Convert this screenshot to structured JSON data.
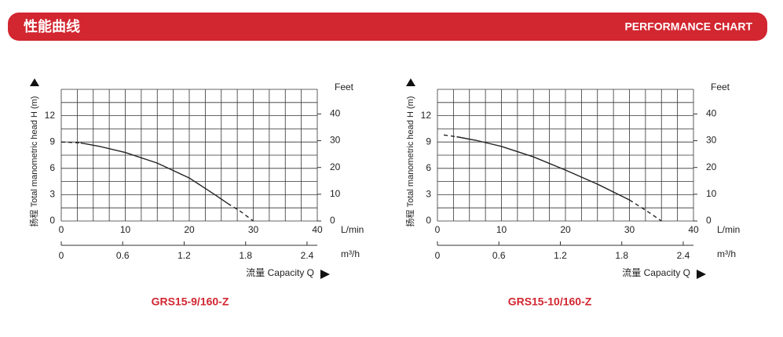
{
  "header": {
    "title_cn": "性能曲线",
    "title_en": "PERFORMANCE CHART"
  },
  "chart_data": [
    {
      "type": "line",
      "title": "GRS15-9/160-Z",
      "ylabel": "扬程 Total manometric head H (m)",
      "y2label": "Feet",
      "xlabel": "L/min",
      "x2label": "m³/h",
      "caption": "流量 Capacity Q",
      "xlim": [
        0,
        40
      ],
      "xticks": [
        0,
        10,
        20,
        30,
        40
      ],
      "x2lim": [
        0,
        2.5
      ],
      "x2ticks": [
        0,
        0.6,
        1.2,
        1.8,
        2.4
      ],
      "ylim": [
        0,
        15
      ],
      "yticks": [
        0,
        3,
        6,
        9,
        12
      ],
      "y2lim": [
        0,
        49.2
      ],
      "y2ticks": [
        0,
        10,
        20,
        30,
        40
      ],
      "xgrid": [
        0,
        2.5,
        5,
        7.5,
        10,
        12.5,
        15,
        17.5,
        20,
        22.5,
        25,
        27.5,
        30,
        32.5,
        35,
        37.5,
        40
      ],
      "ygrid": [
        0,
        1.5,
        3,
        4.5,
        6,
        7.5,
        9,
        10.5,
        12,
        13.5,
        15
      ],
      "color": "#222222",
      "series": [
        {
          "style": "dashed",
          "x": [
            0,
            3
          ],
          "values": [
            9.0,
            8.9
          ]
        },
        {
          "style": "solid",
          "x": [
            3,
            6,
            10,
            15,
            20,
            24,
            26
          ],
          "values": [
            8.9,
            8.5,
            7.8,
            6.6,
            4.9,
            3.0,
            2.0
          ]
        },
        {
          "style": "dashed",
          "x": [
            26,
            28,
            30
          ],
          "values": [
            2.0,
            1.1,
            0
          ]
        }
      ]
    },
    {
      "type": "line",
      "title": "GRS15-10/160-Z",
      "ylabel": "扬程 Total manometric head H (m)",
      "y2label": "Feet",
      "xlabel": "L/min",
      "x2label": "m³/h",
      "caption": "流量 Capacity Q",
      "xlim": [
        0,
        40
      ],
      "xticks": [
        0,
        10,
        20,
        30,
        40
      ],
      "x2lim": [
        0,
        2.5
      ],
      "x2ticks": [
        0,
        0.6,
        1.2,
        1.8,
        2.4
      ],
      "ylim": [
        0,
        15
      ],
      "yticks": [
        0,
        3,
        6,
        9,
        12
      ],
      "y2lim": [
        0,
        49.2
      ],
      "y2ticks": [
        0,
        10,
        20,
        30,
        40
      ],
      "xgrid": [
        0,
        2.5,
        5,
        7.5,
        10,
        12.5,
        15,
        17.5,
        20,
        22.5,
        25,
        27.5,
        30,
        32.5,
        35,
        37.5,
        40
      ],
      "ygrid": [
        0,
        1.5,
        3,
        4.5,
        6,
        7.5,
        9,
        10.5,
        12,
        13.5,
        15
      ],
      "color": "#222222",
      "series": [
        {
          "style": "dashed",
          "x": [
            1,
            3
          ],
          "values": [
            9.8,
            9.6
          ]
        },
        {
          "style": "solid",
          "x": [
            3,
            6,
            10,
            15,
            20,
            25,
            30
          ],
          "values": [
            9.6,
            9.2,
            8.5,
            7.3,
            5.8,
            4.2,
            2.4
          ]
        },
        {
          "style": "dashed",
          "x": [
            30,
            33,
            35
          ],
          "values": [
            2.4,
            1.0,
            0
          ]
        }
      ]
    }
  ]
}
